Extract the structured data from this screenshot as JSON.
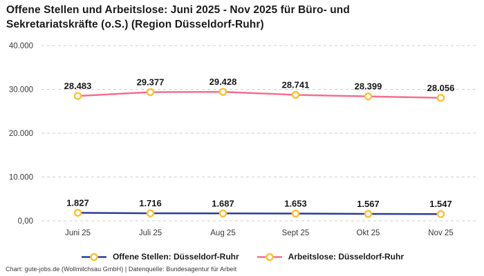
{
  "title": {
    "line1": "Offene Stellen und Arbeitslose: Juni 2025 - Nov 2025 für Büro- und",
    "line2": "Sekretariatskräfte (o.S.) (Region Düsseldorf-Ruhr)"
  },
  "footer": "Chart: gute-jobs.de (Wollmilchsau GmbH) | Datenquelle: Bundesagentur für Arbeit",
  "colors": {
    "open_positions_line": "#2b3d99",
    "unemployed_line": "#f56d8f",
    "marker_stroke": "#fbc237",
    "marker_fill": "#ffffff",
    "grid": "#cdcdcd",
    "data_label_text": "#18181b",
    "axis_text": "#38383c"
  },
  "chart_data": {
    "type": "line",
    "title": "Offene Stellen und Arbeitslose: Juni 2025 - Nov 2025 für Büro- und Sekretariatskräfte (o.S.) (Region Düsseldorf-Ruhr)",
    "categories": [
      "Juni 25",
      "Juli 25",
      "Aug 25",
      "Sept 25",
      "Okt 25",
      "Nov 25"
    ],
    "series": [
      {
        "name": "Offene Stellen: Düsseldorf-Ruhr",
        "color": "#2b3d99",
        "values": [
          1827,
          1716,
          1687,
          1653,
          1567,
          1547
        ],
        "labels": [
          "1.827",
          "1.716",
          "1.687",
          "1.653",
          "1.567",
          "1.547"
        ]
      },
      {
        "name": "Arbeitslose: Düsseldorf-Ruhr",
        "color": "#f56d8f",
        "values": [
          28483,
          29377,
          29428,
          28741,
          28399,
          28056
        ],
        "labels": [
          "28.483",
          "29.377",
          "29.428",
          "28.741",
          "28.399",
          "28.056"
        ]
      }
    ],
    "y_ticks": [
      {
        "value": 0,
        "label": "0,00"
      },
      {
        "value": 10000,
        "label": "10.000"
      },
      {
        "value": 20000,
        "label": "20.000"
      },
      {
        "value": 30000,
        "label": "30.000"
      },
      {
        "value": 40000,
        "label": "40.000"
      }
    ],
    "xlabel": "",
    "ylabel": "",
    "ylim": [
      0,
      40000
    ],
    "grid": true,
    "grid_style": "dashed",
    "marker": "circle-yellow-white-fill",
    "legend_position": "bottom"
  }
}
